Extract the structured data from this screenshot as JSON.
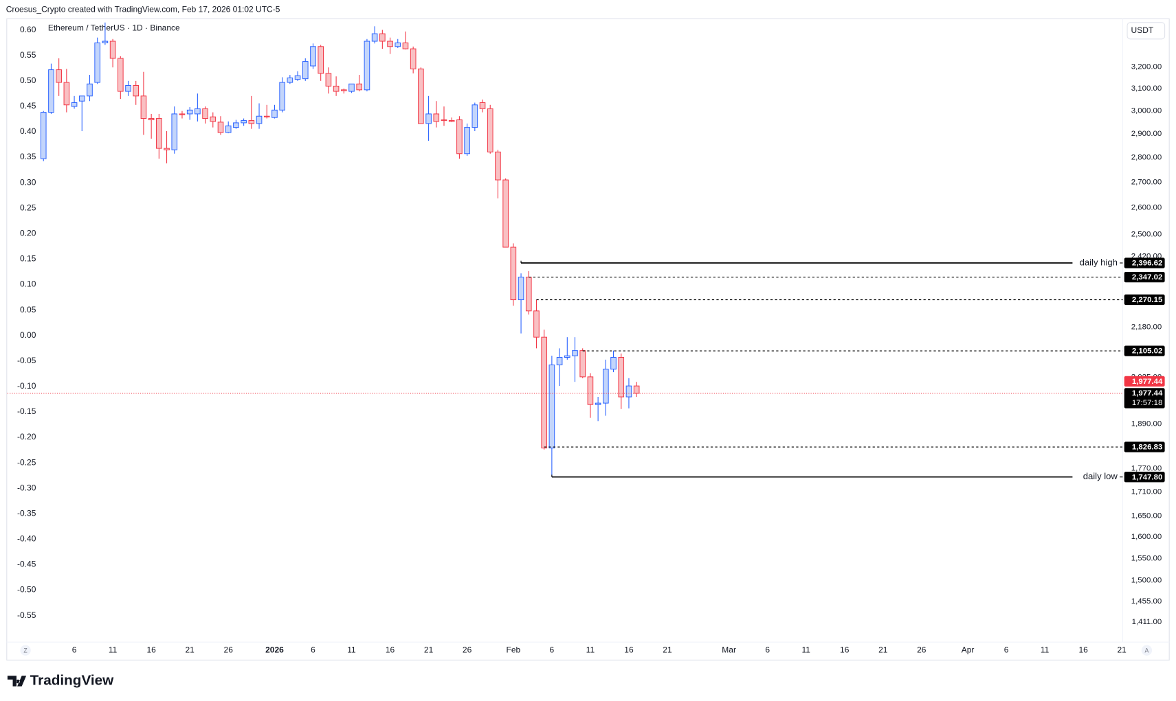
{
  "header": "Croesus_Crypto created with TradingView.com, Feb 17, 2026 01:02 UTC-5",
  "brand": "TradingView",
  "controls": {
    "left": "Z",
    "right": "A"
  },
  "chart_data": {
    "type": "candlestick",
    "title": "Ethereum / TetherUS · 1D · Binance",
    "currency": "USDT",
    "x": [
      2,
      3,
      4,
      5,
      6,
      7,
      8,
      9,
      10,
      11,
      12,
      13,
      14,
      15,
      16,
      17,
      18,
      19,
      20,
      21,
      22,
      23,
      24,
      25,
      26,
      27,
      28,
      29,
      30,
      31,
      32,
      33,
      34,
      35,
      36,
      37,
      38,
      39,
      40,
      41,
      42,
      43,
      44,
      45,
      46,
      47,
      48,
      49,
      50,
      51,
      52,
      53,
      54,
      55,
      56,
      57,
      58,
      59,
      60,
      61,
      62,
      63,
      64,
      65,
      66,
      67,
      68,
      69,
      70,
      71,
      72,
      73,
      74,
      75,
      76,
      77,
      78,
      79
    ],
    "open": [
      2795,
      2993,
      3187,
      3128,
      3019,
      3043,
      3066,
      3128,
      3316,
      3324,
      3241,
      3087,
      3114,
      3066,
      2966,
      2966,
      2838,
      2832,
      2986,
      2986,
      2986,
      3009,
      2973,
      2950,
      2905,
      2927,
      2947,
      2957,
      2944,
      2976,
      2970,
      3003,
      3128,
      3142,
      3145,
      3205,
      3298,
      3170,
      3111,
      3094,
      3087,
      3121,
      3094,
      3324,
      3361,
      3324,
      3298,
      3316,
      3287,
      3191,
      2944,
      2986,
      2960,
      2957,
      2960,
      2816,
      2927,
      3036,
      3009,
      2823,
      2709,
      2453,
      2270,
      2347,
      2233,
      2148,
      1824,
      2062,
      2085,
      2090,
      2106,
      2026,
      1945,
      1949,
      2049,
      2085,
      1967,
      1999
    ],
    "high": [
      2999,
      3216,
      3241,
      3191,
      3066,
      3066,
      3163,
      3342,
      3417,
      3335,
      3251,
      3135,
      3135,
      3177,
      2986,
      2986,
      2911,
      3019,
      2999,
      3016,
      3077,
      3019,
      2993,
      2976,
      2953,
      2960,
      2966,
      3066,
      3033,
      3026,
      3026,
      3152,
      3163,
      3180,
      3241,
      3313,
      3306,
      3198,
      3156,
      3100,
      3121,
      3163,
      3335,
      3398,
      3380,
      3342,
      3335,
      3372,
      3298,
      3198,
      3066,
      3043,
      3019,
      2970,
      2976,
      2944,
      3036,
      3050,
      3026,
      2832,
      2715,
      2467,
      2360,
      2368,
      2270,
      2172,
      2090,
      2113,
      2148,
      2148,
      2113,
      2037,
      1967,
      2078,
      2106,
      2097,
      2022,
      2011
    ],
    "low": [
      2785,
      2986,
      3066,
      2993,
      3009,
      2911,
      3043,
      3121,
      3306,
      3198,
      3053,
      3066,
      3026,
      2895,
      2879,
      2795,
      2776,
      2816,
      2966,
      2960,
      2953,
      2944,
      2927,
      2895,
      2902,
      2921,
      2934,
      2921,
      2921,
      2966,
      2966,
      2993,
      3121,
      3135,
      3135,
      3191,
      3135,
      3077,
      3066,
      3077,
      3080,
      3087,
      3087,
      3313,
      3287,
      3262,
      3291,
      3284,
      3170,
      2944,
      2870,
      2927,
      2934,
      2950,
      2795,
      2807,
      2911,
      2993,
      2816,
      2636,
      2453,
      2250,
      2160,
      2221,
      2113,
      1820,
      1747.8,
      1999,
      2078,
      2011,
      2022,
      1907,
      1898,
      1913,
      2040,
      1932,
      1934,
      1967
    ],
    "close": [
      2993,
      3187,
      3128,
      3026,
      3036,
      3066,
      3121,
      3316,
      3324,
      3241,
      3087,
      3114,
      3066,
      2966,
      2960,
      2838,
      2832,
      2986,
      2983,
      3003,
      3009,
      2966,
      2953,
      2905,
      2934,
      2947,
      2957,
      2944,
      2976,
      2973,
      3003,
      3128,
      3149,
      3159,
      3226,
      3298,
      3170,
      3111,
      3087,
      3090,
      3121,
      3094,
      3324,
      3361,
      3324,
      3298,
      3316,
      3287,
      3191,
      2944,
      2986,
      2953,
      2957,
      2953,
      2816,
      2927,
      3026,
      3009,
      2823,
      2709,
      2453,
      2270,
      2347,
      2233,
      2148,
      1824,
      2062,
      2085,
      2090,
      2106,
      2026,
      1945,
      1949,
      2049,
      2085,
      1967,
      1999,
      1977.44
    ],
    "up_color": {
      "fill": "#c3d5fb",
      "stroke": "#2962ff"
    },
    "down_color": {
      "fill": "#f9c0c3",
      "stroke": "#f23645"
    },
    "log_scale": true,
    "ylim": [
      1373,
      3436
    ],
    "yticks": [
      {
        "value": 3200,
        "label": "3,200.00"
      },
      {
        "value": 3100,
        "label": "3,100.00"
      },
      {
        "value": 3000,
        "label": "3,000.00"
      },
      {
        "value": 2900,
        "label": "2,900.00"
      },
      {
        "value": 2800,
        "label": "2,800.00"
      },
      {
        "value": 2700,
        "label": "2,700.00"
      },
      {
        "value": 2600,
        "label": "2,600.00"
      },
      {
        "value": 2500,
        "label": "2,500.00"
      },
      {
        "value": 2420,
        "label": "2,420.00"
      },
      {
        "value": 2180,
        "label": "2,180.00"
      },
      {
        "value": 2025,
        "label": "2,025.00"
      },
      {
        "value": 1890,
        "label": "1,890.00"
      },
      {
        "value": 1770,
        "label": "1,770.00"
      },
      {
        "value": 1710,
        "label": "1,710.00"
      },
      {
        "value": 1650,
        "label": "1,650.00"
      },
      {
        "value": 1600,
        "label": "1,600.00"
      },
      {
        "value": 1550,
        "label": "1,550.00"
      },
      {
        "value": 1500,
        "label": "1,500.00"
      },
      {
        "value": 1455,
        "label": "1,455.00"
      },
      {
        "value": 1411,
        "label": "1,411.00"
      }
    ],
    "y2lim": [
      -0.599,
      0.622
    ],
    "y2ticks": [
      {
        "value": 0.6,
        "label": "0.60"
      },
      0.55,
      {
        "value": 0.5,
        "label": "0.50"
      },
      0.45,
      {
        "value": 0.4,
        "label": "0.40"
      },
      0.35,
      {
        "value": 0.3,
        "label": "0.30"
      },
      0.25,
      {
        "value": 0.2,
        "label": "0.20"
      },
      0.15,
      {
        "value": 0.1,
        "label": "0.10"
      },
      0.05,
      {
        "value": 0,
        "label": "0.00"
      },
      -0.05,
      {
        "value": -0.1,
        "label": "-0.10"
      },
      -0.15,
      {
        "value": -0.2,
        "label": "-0.20"
      },
      -0.25,
      {
        "value": -0.3,
        "label": "-0.30"
      },
      -0.35,
      {
        "value": -0.4,
        "label": "-0.40"
      },
      -0.45,
      {
        "value": -0.5,
        "label": "-0.50"
      },
      -0.55
    ],
    "xlim": [
      -2.67,
      142.12
    ],
    "xticks": [
      6,
      11,
      16,
      21,
      26,
      {
        "value": 32,
        "label": "2026"
      },
      {
        "value": 37,
        "label": "6"
      },
      {
        "value": 42,
        "label": "11"
      },
      {
        "value": 47,
        "label": "16"
      },
      {
        "value": 52,
        "label": "21"
      },
      {
        "value": 57,
        "label": "26"
      },
      {
        "value": 63,
        "label": "Feb"
      },
      {
        "value": 68,
        "label": "6"
      },
      {
        "value": 73,
        "label": "11"
      },
      {
        "value": 78,
        "label": "16"
      },
      {
        "value": 83,
        "label": "21"
      },
      {
        "value": 91,
        "label": "Mar"
      },
      {
        "value": 96,
        "label": "6"
      },
      {
        "value": 101,
        "label": "11"
      },
      {
        "value": 106,
        "label": "16"
      },
      {
        "value": 111,
        "label": "21"
      },
      {
        "value": 116,
        "label": "26"
      },
      {
        "value": 122,
        "label": "Apr"
      },
      {
        "value": 127,
        "label": "6"
      },
      {
        "value": 132,
        "label": "11"
      },
      {
        "value": 137,
        "label": "16"
      },
      {
        "value": 142,
        "label": "21"
      }
    ],
    "levels": [
      {
        "value": 2396.62,
        "label": "2,396.62",
        "name": "daily high",
        "start": 64,
        "style": "solid"
      },
      {
        "value": 2347.02,
        "label": "2,347.02",
        "start": 65,
        "style": "dashed"
      },
      {
        "value": 2270.15,
        "label": "2,270.15",
        "start": 66,
        "style": "dashed"
      },
      {
        "value": 2105.02,
        "label": "2,105.02",
        "start": 72,
        "style": "dashed"
      },
      {
        "value": 1826.83,
        "label": "1,826.83",
        "start": 67,
        "style": "dashed"
      },
      {
        "value": 1747.8,
        "label": "1,747.80",
        "name": "daily low",
        "start": 68,
        "style": "solid"
      }
    ],
    "last_price": {
      "value": 1977.44,
      "label": "1,977.44",
      "countdown": "17:57:18"
    }
  }
}
